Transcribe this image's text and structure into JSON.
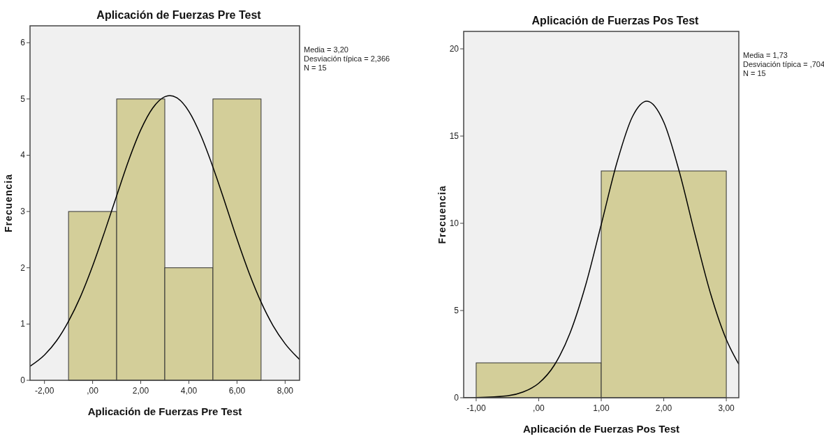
{
  "chart_data": [
    {
      "type": "histogram",
      "title": "Aplicación de Fuerzas Pre Test",
      "xlabel": "Aplicación de Fuerzas Pre Test",
      "ylabel": "Frecuencia",
      "bins": [
        -1,
        1,
        3,
        5,
        7
      ],
      "values": [
        3,
        5,
        2,
        5
      ],
      "color": "#d3ce99",
      "grid": false,
      "xlim": [
        -2.6,
        8.6
      ],
      "ylim": [
        0,
        6.3
      ],
      "xticks": [
        {
          "value": -2,
          "label": "-2,00"
        },
        {
          "value": 0,
          "label": ",00"
        },
        {
          "value": 2,
          "label": "2,00"
        },
        {
          "value": 4,
          "label": "4,00"
        },
        {
          "value": 6,
          "label": "6,00"
        },
        {
          "value": 8,
          "label": "8,00"
        }
      ],
      "yticks": [
        0,
        1,
        2,
        3,
        4,
        5,
        6
      ],
      "series": [
        {
          "type": "line",
          "color": "#000000",
          "x": [
            -2.6,
            -2,
            -1.5,
            -1,
            -0.5,
            0,
            0.5,
            1,
            1.5,
            2,
            2.5,
            3,
            3.2,
            3.5,
            4,
            4.5,
            5,
            5.5,
            6,
            6.5,
            7,
            7.5,
            8,
            8.6
          ],
          "values": [
            0.25,
            0.45,
            0.7,
            1.05,
            1.49,
            2.03,
            2.64,
            3.28,
            3.91,
            4.45,
            4.84,
            5.04,
            5.06,
            5.02,
            4.78,
            4.35,
            3.79,
            3.16,
            2.51,
            1.91,
            1.39,
            0.97,
            0.65,
            0.37
          ]
        }
      ],
      "annotations": [
        "Media = 3,20",
        "Desviación típica = 2,366",
        "N = 15"
      ]
    },
    {
      "type": "histogram",
      "title": "Aplicación de Fuerzas Pos Test",
      "xlabel": "Aplicación de Fuerzas Pos Test",
      "ylabel": "Frecuencia",
      "bins": [
        -1,
        1,
        3
      ],
      "values": [
        2,
        13
      ],
      "color": "#d3ce99",
      "grid": false,
      "xlim": [
        -1.2,
        3.2
      ],
      "ylim": [
        0,
        21
      ],
      "xticks": [
        {
          "value": -1,
          "label": "-1,00"
        },
        {
          "value": 0,
          "label": ",00"
        },
        {
          "value": 1,
          "label": "1,00"
        },
        {
          "value": 2,
          "label": "2,00"
        },
        {
          "value": 3,
          "label": "3,00"
        }
      ],
      "yticks": [
        0,
        5,
        10,
        15,
        20
      ],
      "series": [
        {
          "type": "line",
          "color": "#000000",
          "x": [
            -1.2,
            -1,
            -0.5,
            -0.25,
            0,
            0.25,
            0.5,
            0.75,
            1,
            1.25,
            1.5,
            1.73,
            2,
            2.25,
            2.5,
            2.75,
            3,
            3.2
          ],
          "values": [
            0,
            0.01,
            0.11,
            0.33,
            0.83,
            1.87,
            3.7,
            6.45,
            9.93,
            13.47,
            16.12,
            17.0,
            15.8,
            12.94,
            9.35,
            5.95,
            3.34,
            1.92
          ]
        }
      ],
      "annotations": [
        "Media = 1,73",
        "Desviación típica = ,704",
        "N = 15"
      ]
    }
  ]
}
